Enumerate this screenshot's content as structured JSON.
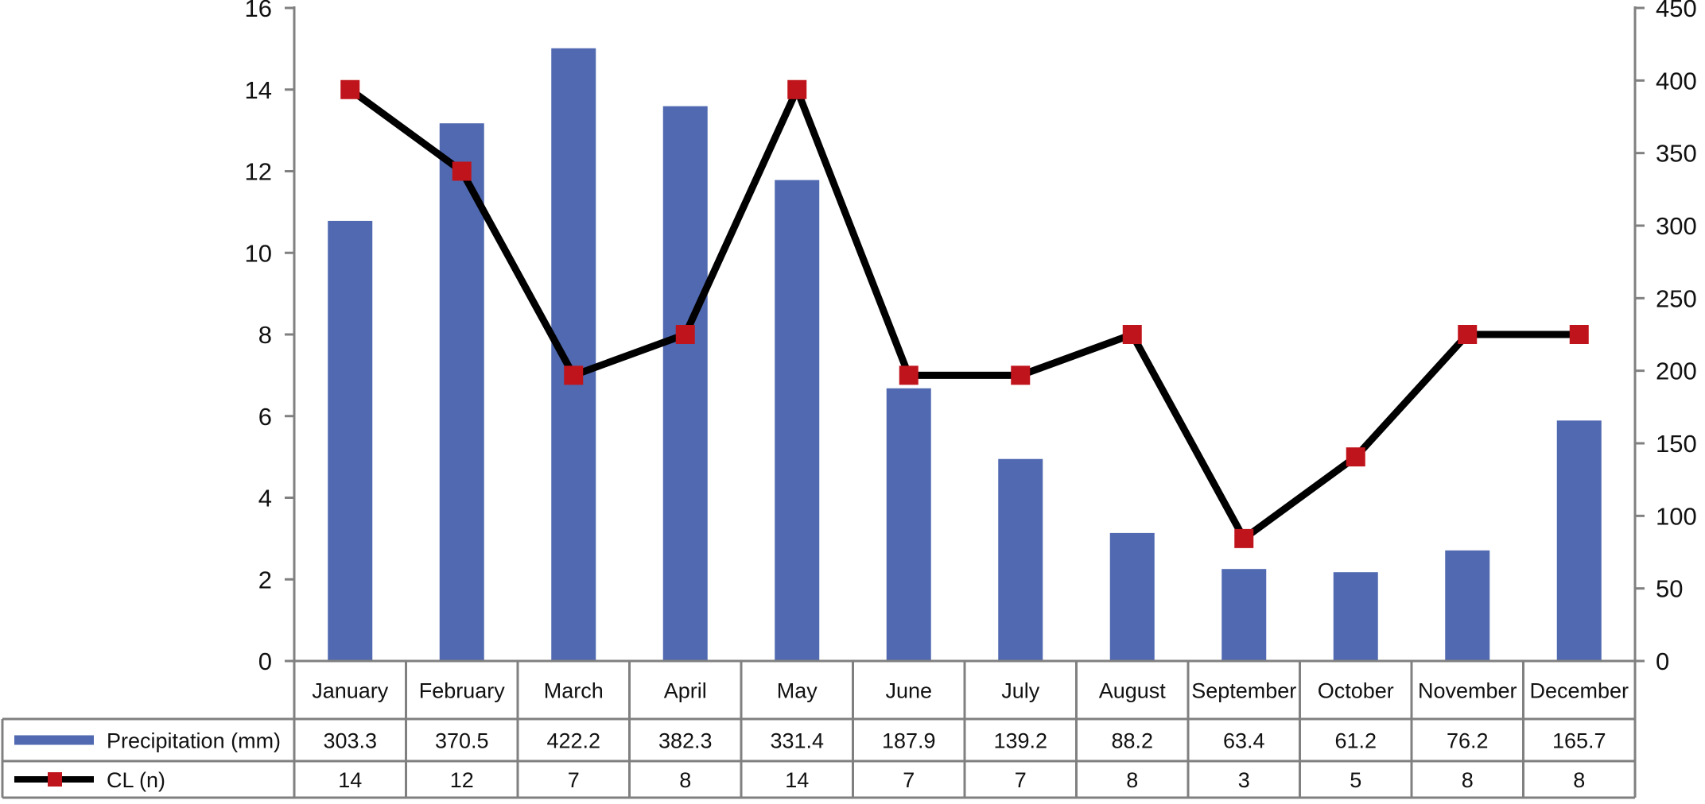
{
  "chart_data": {
    "type": "bar",
    "categories": [
      "January",
      "February",
      "March",
      "April",
      "May",
      "June",
      "July",
      "August",
      "September",
      "October",
      "November",
      "December"
    ],
    "series": [
      {
        "name": "Precipitation (mm)",
        "type": "bar",
        "axis": "right",
        "color": "#5069b0",
        "values": [
          303.3,
          370.5,
          422.2,
          382.3,
          331.4,
          187.9,
          139.2,
          88.2,
          63.4,
          61.2,
          76.2,
          165.7
        ],
        "table_labels": [
          "303.3",
          "370.5",
          "422.2",
          "382.3",
          "331.4",
          "187.9",
          "139.2",
          "88.2",
          "63.4",
          "61.2",
          "76.2",
          "165.7"
        ]
      },
      {
        "name": "CL (n)",
        "type": "line",
        "axis": "left",
        "color": "#000000",
        "marker": "square",
        "marker_color": "#c0141c",
        "values": [
          14,
          12,
          7,
          8,
          14,
          7,
          7,
          8,
          3,
          5,
          8,
          8
        ],
        "table_labels": [
          "14",
          "12",
          "7",
          "8",
          "14",
          "7",
          "7",
          "8",
          "3",
          "5",
          "8",
          "8"
        ]
      }
    ],
    "y_left": {
      "min": 0,
      "max": 16,
      "ticks": [
        "0",
        "2",
        "4",
        "6",
        "8",
        "10",
        "12",
        "14",
        "16"
      ]
    },
    "y_right": {
      "min": 0,
      "max": 450,
      "ticks": [
        "0",
        "50",
        "100",
        "150",
        "200",
        "250",
        "300",
        "350",
        "400",
        "450"
      ]
    },
    "data_table": true,
    "grid": false,
    "legend": "in data table"
  }
}
